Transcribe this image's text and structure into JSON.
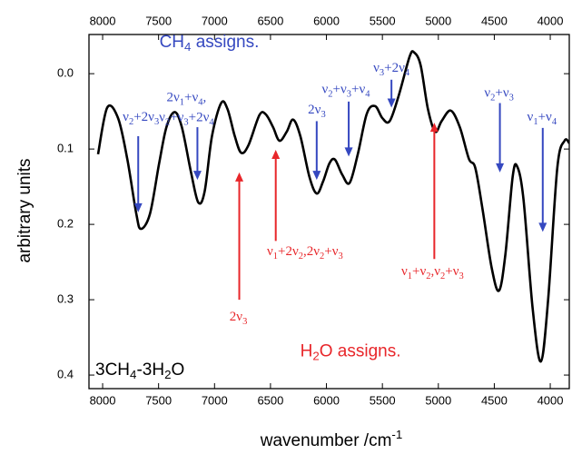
{
  "chart_data": {
    "type": "line",
    "xlabel": "wavenumber /cm-1",
    "ylabel": "arbitrary units",
    "xlim": [
      8122,
      3830
    ],
    "ylim": [
      -0.052,
      0.418
    ],
    "y_inverted": true,
    "xticks": [
      8000,
      7500,
      7000,
      6500,
      6000,
      5500,
      5000,
      4500,
      4000
    ],
    "yticks": [
      {
        "value": 0,
        "label": "0.0"
      },
      0.1,
      0.2,
      0.3,
      0.4
    ],
    "ticks_top": true,
    "series": [
      {
        "color": "#000000",
        "x": [
          8041,
          7959,
          7862,
          7780,
          7699,
          7658,
          7577,
          7495,
          7430,
          7357,
          7292,
          7210,
          7145,
          7088,
          7023,
          6941,
          6884,
          6819,
          6762,
          6697,
          6599,
          6542,
          6477,
          6420,
          6355,
          6298,
          6233,
          6152,
          6087,
          6030,
          5973,
          5924,
          5859,
          5793,
          5720,
          5639,
          5565,
          5500,
          5435,
          5354,
          5256,
          5215,
          5158,
          5093,
          5028,
          4971,
          4889,
          4808,
          4727,
          4670,
          4605,
          4523,
          4458,
          4401,
          4336,
          4296,
          4239,
          4157,
          4084,
          4019,
          3937,
          3872,
          3831
        ],
        "values": [
          0.107,
          0.045,
          0.059,
          0.113,
          0.186,
          0.206,
          0.186,
          0.119,
          0.071,
          0.051,
          0.071,
          0.131,
          0.171,
          0.156,
          0.083,
          0.039,
          0.047,
          0.083,
          0.105,
          0.095,
          0.055,
          0.054,
          0.071,
          0.089,
          0.077,
          0.061,
          0.083,
          0.137,
          0.159,
          0.143,
          0.119,
          0.114,
          0.134,
          0.145,
          0.107,
          0.053,
          0.043,
          0.059,
          0.063,
          0.029,
          -0.023,
          -0.028,
          -0.011,
          0.047,
          0.077,
          0.063,
          0.049,
          0.071,
          0.113,
          0.125,
          0.18,
          0.258,
          0.288,
          0.24,
          0.137,
          0.123,
          0.167,
          0.312,
          0.382,
          0.3,
          0.125,
          0.089,
          0.092
        ]
      }
    ],
    "annotations": [
      {
        "text": [
          "ν2+2ν3"
        ],
        "color": "#3548c0",
        "label_x": 7658,
        "label_y": 0.059,
        "x": 7682,
        "y_from": 0.083,
        "y_to": 0.184
      },
      {
        "text": [
          "2ν1+ν4,",
          "ν2+ν3+2ν4"
        ],
        "color": "#3548c0",
        "label_x": 7251,
        "label_y": 0.033,
        "x": 7153,
        "y_from": 0.071,
        "y_to": 0.141
      },
      {
        "text": [
          "2ν3"
        ],
        "color": "#3548c0",
        "label_x": 6086,
        "label_y": 0.049,
        "x": 6087,
        "y_from": 0.063,
        "y_to": 0.141
      },
      {
        "text": [
          "ν2+ν3+ν4"
        ],
        "color": "#3548c0",
        "label_x": 5826,
        "label_y": 0.022,
        "x": 5801,
        "y_from": 0.037,
        "y_to": 0.11
      },
      {
        "text": [
          "ν3+2ν4"
        ],
        "color": "#3548c0",
        "label_x": 5419,
        "label_y": -0.006,
        "x": 5419,
        "y_from": 0.008,
        "y_to": 0.045
      },
      {
        "text": [
          "ν2+ν3"
        ],
        "color": "#3548c0",
        "label_x": 4458,
        "label_y": 0.027,
        "x": 4450,
        "y_from": 0.039,
        "y_to": 0.131
      },
      {
        "text": [
          "ν1+ν4"
        ],
        "color": "#3548c0",
        "label_x": 4075,
        "label_y": 0.059,
        "x": 4067,
        "y_from": 0.072,
        "y_to": 0.21
      },
      {
        "text": [
          "2ν3"
        ],
        "color": "#e8262a",
        "label_x": 6787,
        "label_y": 0.324,
        "x": 6779,
        "y_from": 0.3,
        "y_to": 0.131
      },
      {
        "text": [
          "ν1+2ν2,2ν2+ν3"
        ],
        "color": "#e8262a",
        "label_x": 6192,
        "label_y": 0.237,
        "x": 6453,
        "y_from": 0.222,
        "y_to": 0.101
      },
      {
        "text": [
          "ν1+ν2,ν2+ν3"
        ],
        "color": "#e8262a",
        "label_x": 5052,
        "label_y": 0.264,
        "x": 5036,
        "y_from": 0.246,
        "y_to": 0.065
      }
    ],
    "texts": [
      {
        "text": "CH4 assigns.",
        "color": "#3548c0",
        "x": 7047,
        "y": -0.041,
        "anchor": "middle"
      },
      {
        "text": "H2O assigns.",
        "color": "#e8262a",
        "x": 5785,
        "y": 0.369,
        "anchor": "middle"
      },
      {
        "text": "3CH4-3H2O",
        "color": "#000000",
        "x": 8065,
        "y": 0.394,
        "anchor": "start"
      }
    ]
  }
}
